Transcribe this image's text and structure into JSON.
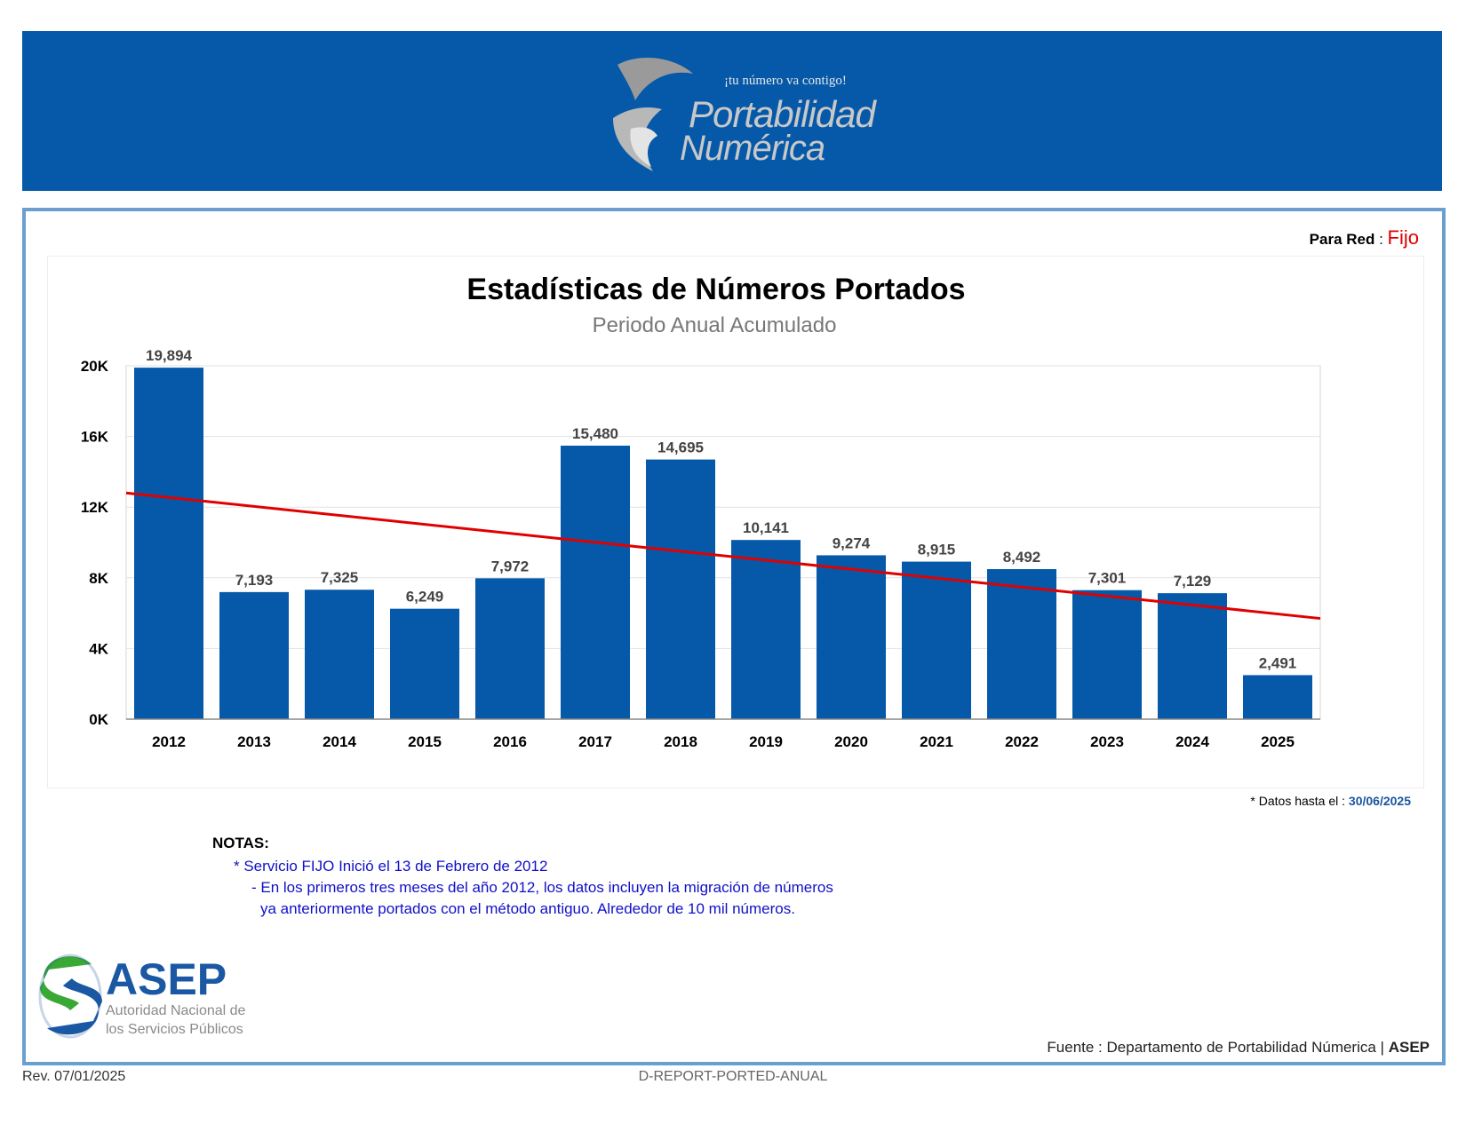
{
  "header": {
    "tagline": "¡tu número va contigo!",
    "brand_line1": "Portabilidad",
    "brand_line2": "Numérica",
    "band_color": "#0559a8"
  },
  "filter": {
    "label": "Para Red",
    "separator": " : ",
    "value": "Fijo"
  },
  "chart_data": {
    "type": "bar",
    "title": "Estadísticas de Números Portados",
    "subtitle": "Periodo Anual Acumulado",
    "categories": [
      "2012",
      "2013",
      "2014",
      "2015",
      "2016",
      "2017",
      "2018",
      "2019",
      "2020",
      "2021",
      "2022",
      "2023",
      "2024",
      "2025"
    ],
    "values": [
      19894,
      7193,
      7325,
      6249,
      7972,
      15480,
      14695,
      10141,
      9274,
      8915,
      8492,
      7301,
      7129,
      2491
    ],
    "value_labels": [
      "19,894",
      "7,193",
      "7,325",
      "6,249",
      "7,972",
      "15,480",
      "14,695",
      "10,141",
      "9,274",
      "8,915",
      "8,492",
      "7,301",
      "7,129",
      "2,491"
    ],
    "ylim": [
      0,
      20000
    ],
    "yticks": [
      0,
      4000,
      8000,
      12000,
      16000,
      20000
    ],
    "ytick_labels": [
      "0K",
      "4K",
      "8K",
      "12K",
      "16K",
      "20K"
    ],
    "trendline": {
      "start": 12800,
      "end": 5700,
      "color": "#e00000"
    },
    "bar_color": "#0559a8",
    "grid": true,
    "xlabel": "",
    "ylabel": ""
  },
  "footnote": {
    "prefix": "* Datos hasta el : ",
    "date": "30/06/2025"
  },
  "notes": {
    "title": "NOTAS:",
    "line1": "* Servicio FIJO Inició el 13 de Febrero de 2012",
    "line2": "- En los primeros tres meses del año 2012,  los datos incluyen la migración de números",
    "line3": "ya anteriormente portados con el método antiguo. Alrededor de 10 mil números."
  },
  "asep": {
    "name": "ASEP",
    "sub1": "Autoridad Nacional de",
    "sub2": "los Servicios Públicos"
  },
  "source": {
    "prefix": "Fuente : Departamento de Portabilidad Númerica | ",
    "org": "ASEP"
  },
  "footer": {
    "revision": "Rev. 07/01/2025",
    "report_id": "D-REPORT-PORTED-ANUAL"
  }
}
